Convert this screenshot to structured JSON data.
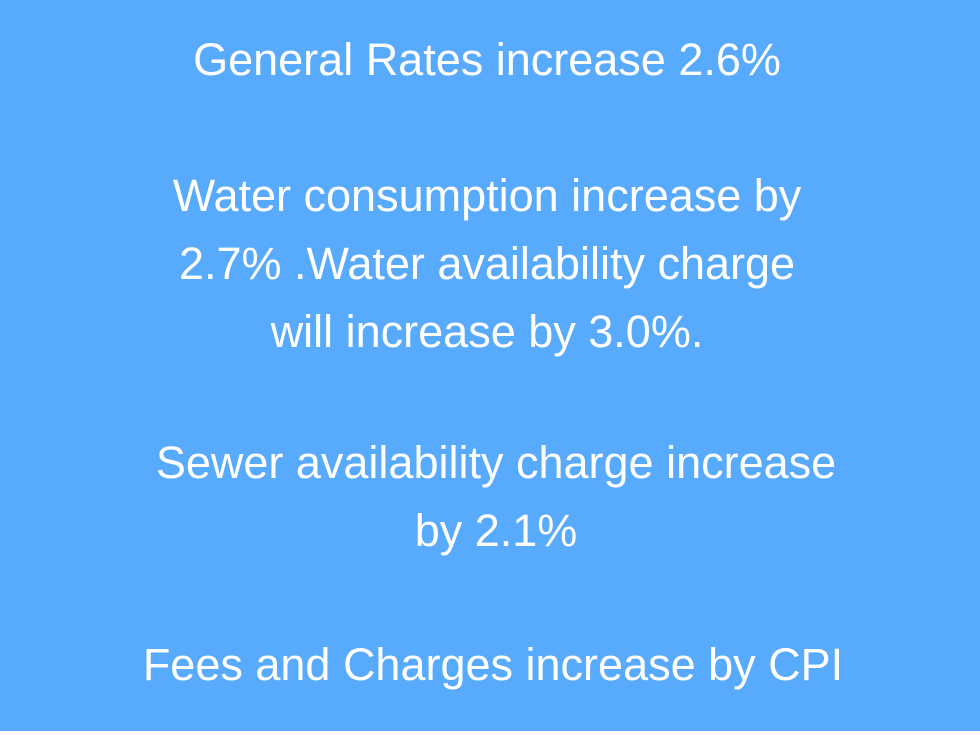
{
  "slide": {
    "background_color": "#57AAFC",
    "text_color": "#FFFFFF",
    "lines": [
      "General Rates increase 2.6%",
      "Water consumption increase by",
      "2.7% .Water availability charge",
      "will increase by 3.0%.",
      "Sewer availability charge increase",
      "by 2.1%",
      "Fees and Charges increase by CPI"
    ]
  }
}
